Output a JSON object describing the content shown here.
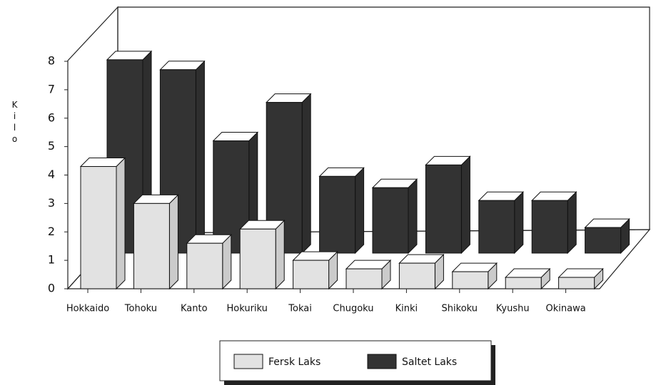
{
  "chart_data": {
    "type": "bar3d",
    "y_label": "Kilo",
    "categories": [
      "Hokkaido",
      "Tohoku",
      "Kanto",
      "Hokuriku",
      "Tokai",
      "Chugoku",
      "Kinki",
      "Shikoku",
      "Kyushu",
      "Okinawa"
    ],
    "series": [
      {
        "name": "Fersk Laks",
        "color": "#e2e2e2",
        "values": [
          4.3,
          3.0,
          1.6,
          2.1,
          1.0,
          0.7,
          0.9,
          0.6,
          0.4,
          0.4
        ]
      },
      {
        "name": "Saltet Laks",
        "color": "#333333",
        "values": [
          6.8,
          6.45,
          3.95,
          5.3,
          2.7,
          2.3,
          3.1,
          1.85,
          1.85,
          0.9
        ]
      }
    ],
    "ylim": [
      0,
      8
    ],
    "yticks": [
      0,
      1,
      2,
      3,
      4,
      5,
      6,
      7,
      8
    ]
  }
}
